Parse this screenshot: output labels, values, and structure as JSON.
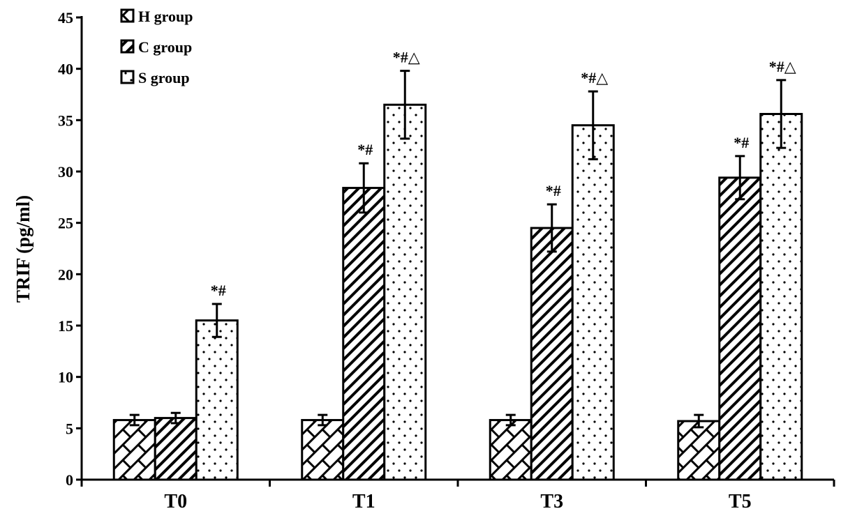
{
  "chart_data": {
    "type": "bar",
    "title": "",
    "xlabel": "",
    "ylabel": "TRIF (pg/ml)",
    "ylim": [
      0,
      45
    ],
    "yticks": [
      0,
      5,
      10,
      15,
      20,
      25,
      30,
      35,
      40,
      45
    ],
    "categories": [
      "T0",
      "T1",
      "T3",
      "T5"
    ],
    "legend_position": "top-left",
    "series": [
      {
        "name": "H group",
        "pattern": "crosshatch",
        "values": [
          5.8,
          5.8,
          5.8,
          5.7
        ],
        "errors": [
          0.5,
          0.5,
          0.5,
          0.6
        ],
        "annotations": [
          "",
          "",
          "",
          ""
        ]
      },
      {
        "name": "C group",
        "pattern": "diagonal",
        "values": [
          6.0,
          28.4,
          24.5,
          29.4
        ],
        "errors": [
          0.5,
          2.4,
          2.3,
          2.1
        ],
        "annotations": [
          "",
          "*#",
          "*#",
          "*#"
        ]
      },
      {
        "name": "S group",
        "pattern": "dots",
        "values": [
          15.5,
          36.5,
          34.5,
          35.6
        ],
        "errors": [
          1.6,
          3.3,
          3.3,
          3.3
        ],
        "annotations": [
          "*#",
          "*#△",
          "*#△",
          "*#△"
        ]
      }
    ]
  }
}
